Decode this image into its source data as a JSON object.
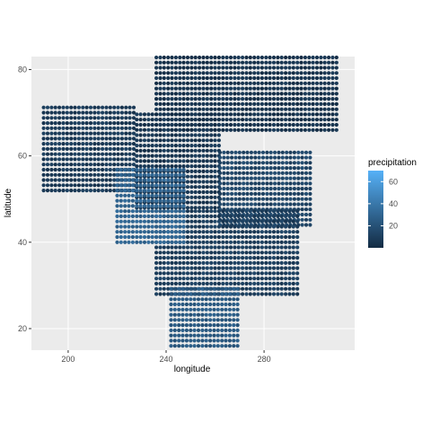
{
  "chart_data": {
    "type": "scatter",
    "title": "",
    "xlabel": "longitude",
    "ylabel": "latitude",
    "x_ticks": [
      200,
      240,
      280
    ],
    "y_ticks": [
      20,
      40,
      60,
      80
    ],
    "xlim": [
      185,
      317
    ],
    "ylim": [
      15,
      83
    ],
    "grid": true,
    "legend": {
      "title": "precipitation",
      "position": "right",
      "type": "continuous",
      "ticks": [
        20,
        40,
        60
      ],
      "range": [
        0,
        70
      ],
      "color_low": "#132B43",
      "color_high": "#56B1F7"
    },
    "regions": [
      {
        "name": "",
        "lon_range": [
          190,
          228
        ],
        "lat_range": [
          52,
          72
        ],
        "precip": 8
      },
      {
        "name": "",
        "lon_range": [
          228,
          262
        ],
        "lat_range": [
          48,
          70
        ],
        "precip": 6
      },
      {
        "name": "",
        "lon_range": [
          262,
          300
        ],
        "lat_range": [
          44,
          62
        ],
        "precip": 14
      },
      {
        "name": "",
        "lon_range": [
          236,
          294
        ],
        "lat_range": [
          28,
          48
        ],
        "precip": 10
      },
      {
        "name": "",
        "lon_range": [
          242,
          270
        ],
        "lat_range": [
          16,
          30
        ],
        "precip": 24
      },
      {
        "name": "",
        "lon_range": [
          220,
          248
        ],
        "lat_range": [
          40,
          58
        ],
        "precip": 30
      },
      {
        "name": "",
        "lon_range": [
          236,
          310
        ],
        "lat_range": [
          66,
          83
        ],
        "precip": 4
      }
    ]
  }
}
